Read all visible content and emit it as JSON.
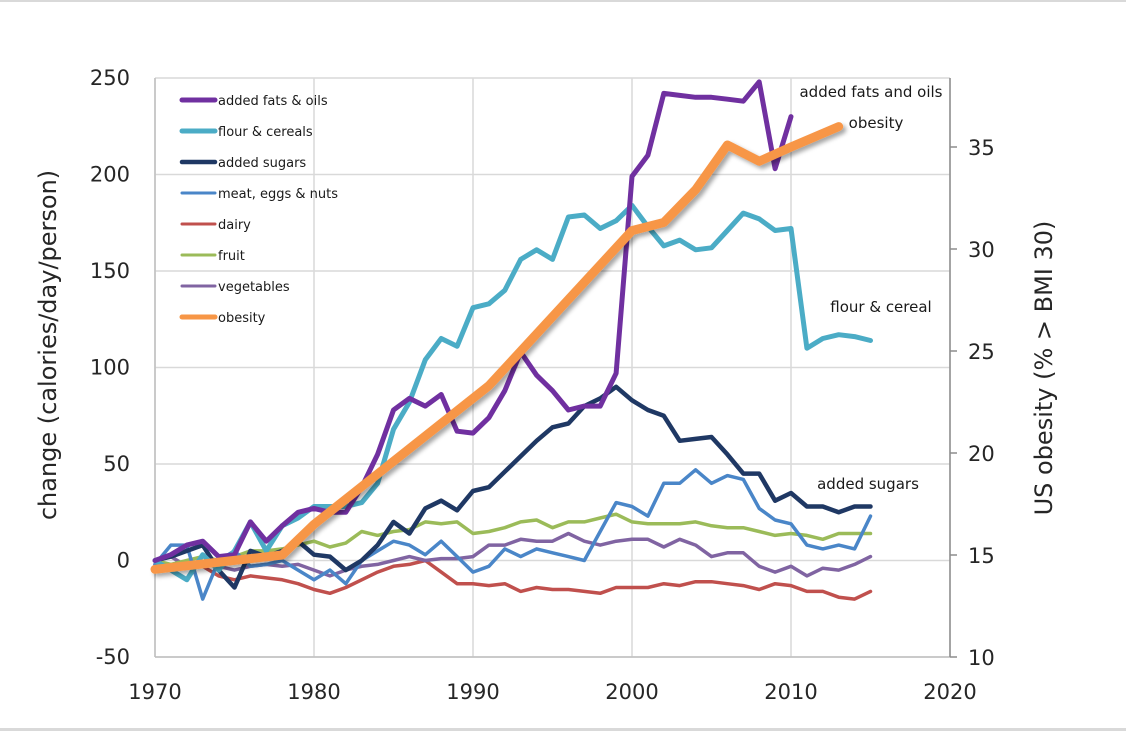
{
  "chart_data": {
    "type": "line",
    "title": "",
    "xlabel": "",
    "ylabel": "change (calories/day/person)",
    "y2label": "US obesity (% > BMI 30)",
    "xlim": [
      1970,
      2020
    ],
    "ylim": [
      -50,
      250
    ],
    "y2lim": [
      10,
      38.1
    ],
    "xticks": [
      "1970",
      "1980",
      "1990",
      "2000",
      "2010",
      "2020"
    ],
    "yticks": [
      "250",
      "200",
      "150",
      "100",
      "50",
      "0",
      "-50"
    ],
    "y2ticks": [
      "35",
      "30",
      "25",
      "20",
      "15",
      "10"
    ],
    "grid": true,
    "legend_position": "top-left",
    "legend": [
      "added fats & oils",
      "flour & cereals",
      "added sugars",
      "meat, eggs & nuts",
      "dairy",
      "fruit",
      "vegetables",
      "obesity"
    ],
    "annotations": [
      {
        "text": "added fats and oils",
        "x": 2013,
        "y": 243
      },
      {
        "text": "obesity",
        "x": 2016,
        "y": 226
      },
      {
        "text": "flour & cereal",
        "x": 2016,
        "y": 131
      },
      {
        "text": "added sugars",
        "x": 2016,
        "y": 39
      }
    ],
    "series": [
      {
        "name": "added fats & oils",
        "axis": "left",
        "color": "#7030a0",
        "x": [
          1970,
          1971,
          1972,
          1973,
          1974,
          1975,
          1976,
          1977,
          1978,
          1979,
          1980,
          1981,
          1982,
          1983,
          1984,
          1985,
          1986,
          1987,
          1988,
          1989,
          1990,
          1991,
          1992,
          1993,
          1994,
          1995,
          1996,
          1997,
          1998,
          1999,
          2000,
          2001,
          2002,
          2003,
          2004,
          2005,
          2006,
          2007,
          2008,
          2009,
          2010
        ],
        "values": [
          0,
          3,
          8,
          10,
          2,
          3,
          20,
          10,
          18,
          25,
          27,
          25,
          25,
          38,
          55,
          78,
          84,
          80,
          86,
          67,
          66,
          74,
          88,
          108,
          96,
          88,
          78,
          80,
          80,
          97,
          199,
          210,
          242,
          241,
          240,
          240,
          239,
          238,
          248,
          203,
          230
        ]
      },
      {
        "name": "flour & cereals",
        "axis": "left",
        "color": "#4bacc6",
        "x": [
          1970,
          1971,
          1972,
          1973,
          1974,
          1975,
          1976,
          1977,
          1978,
          1979,
          1980,
          1981,
          1982,
          1983,
          1984,
          1985,
          1986,
          1987,
          1988,
          1989,
          1990,
          1991,
          1992,
          1993,
          1994,
          1995,
          1996,
          1997,
          1998,
          1999,
          2000,
          2001,
          2002,
          2003,
          2004,
          2005,
          2006,
          2007,
          2008,
          2009,
          2010,
          2011,
          2012,
          2013,
          2014,
          2015
        ],
        "values": [
          0,
          -5,
          -10,
          3,
          -5,
          5,
          20,
          5,
          18,
          22,
          28,
          28,
          28,
          30,
          40,
          68,
          82,
          104,
          115,
          111,
          131,
          133,
          140,
          156,
          161,
          156,
          178,
          179,
          172,
          176,
          184,
          173,
          163,
          166,
          161,
          162,
          171,
          180,
          177,
          171,
          172,
          110,
          115,
          117,
          116,
          114
        ]
      },
      {
        "name": "added sugars",
        "axis": "left",
        "color": "#1f3864",
        "x": [
          1970,
          1971,
          1972,
          1973,
          1974,
          1975,
          1976,
          1977,
          1978,
          1979,
          1980,
          1981,
          1982,
          1983,
          1984,
          1985,
          1986,
          1987,
          1988,
          1989,
          1990,
          1991,
          1992,
          1993,
          1994,
          1995,
          1996,
          1997,
          1998,
          1999,
          2000,
          2001,
          2002,
          2003,
          2004,
          2005,
          2006,
          2007,
          2008,
          2009,
          2010,
          2011,
          2012,
          2013,
          2014,
          2015
        ],
        "values": [
          0,
          2,
          5,
          8,
          -5,
          -14,
          5,
          2,
          5,
          10,
          3,
          2,
          -5,
          0,
          8,
          20,
          14,
          27,
          31,
          26,
          36,
          38,
          46,
          54,
          62,
          69,
          71,
          80,
          84,
          90,
          83,
          78,
          75,
          62,
          63,
          64,
          55,
          45,
          45,
          31,
          35,
          28,
          28,
          25,
          28,
          28
        ]
      },
      {
        "name": "meat, eggs & nuts",
        "axis": "left",
        "color": "#4a86c8",
        "x": [
          1970,
          1971,
          1972,
          1973,
          1974,
          1975,
          1976,
          1977,
          1978,
          1979,
          1980,
          1981,
          1982,
          1983,
          1984,
          1985,
          1986,
          1987,
          1988,
          1989,
          1990,
          1991,
          1992,
          1993,
          1994,
          1995,
          1996,
          1997,
          1998,
          1999,
          2000,
          2001,
          2002,
          2003,
          2004,
          2005,
          2006,
          2007,
          2008,
          2009,
          2010,
          2011,
          2012,
          2013,
          2014,
          2015
        ],
        "values": [
          -2,
          8,
          8,
          -20,
          0,
          5,
          -3,
          -2,
          0,
          -5,
          -10,
          -5,
          -12,
          0,
          5,
          10,
          8,
          3,
          10,
          2,
          -6,
          -3,
          6,
          2,
          6,
          4,
          2,
          0,
          15,
          30,
          28,
          23,
          40,
          40,
          47,
          40,
          44,
          42,
          27,
          21,
          19,
          8,
          6,
          8,
          6,
          23
        ]
      },
      {
        "name": "dairy",
        "axis": "left",
        "color": "#c0504d",
        "x": [
          1970,
          1971,
          1972,
          1973,
          1974,
          1975,
          1976,
          1977,
          1978,
          1979,
          1980,
          1981,
          1982,
          1983,
          1984,
          1985,
          1986,
          1987,
          1988,
          1989,
          1990,
          1991,
          1992,
          1993,
          1994,
          1995,
          1996,
          1997,
          1998,
          1999,
          2000,
          2001,
          2002,
          2003,
          2004,
          2005,
          2006,
          2007,
          2008,
          2009,
          2010,
          2011,
          2012,
          2013,
          2014,
          2015
        ],
        "values": [
          -2,
          -3,
          -2,
          -3,
          -8,
          -10,
          -8,
          -9,
          -10,
          -12,
          -15,
          -17,
          -14,
          -10,
          -6,
          -3,
          -2,
          0,
          -6,
          -12,
          -12,
          -13,
          -12,
          -16,
          -14,
          -15,
          -15,
          -16,
          -17,
          -14,
          -14,
          -14,
          -12,
          -13,
          -11,
          -11,
          -12,
          -13,
          -15,
          -12,
          -13,
          -16,
          -16,
          -19,
          -20,
          -16
        ]
      },
      {
        "name": "fruit",
        "axis": "left",
        "color": "#9bbb59",
        "x": [
          1970,
          1971,
          1972,
          1973,
          1974,
          1975,
          1976,
          1977,
          1978,
          1979,
          1980,
          1981,
          1982,
          1983,
          1984,
          1985,
          1986,
          1987,
          1988,
          1989,
          1990,
          1991,
          1992,
          1993,
          1994,
          1995,
          1996,
          1997,
          1998,
          1999,
          2000,
          2001,
          2002,
          2003,
          2004,
          2005,
          2006,
          2007,
          2008,
          2009,
          2010,
          2011,
          2012,
          2013,
          2014,
          2015
        ],
        "values": [
          0,
          -2,
          0,
          2,
          0,
          2,
          5,
          5,
          6,
          8,
          10,
          7,
          9,
          15,
          13,
          15,
          16,
          20,
          19,
          20,
          14,
          15,
          17,
          20,
          21,
          17,
          20,
          20,
          22,
          24,
          20,
          19,
          19,
          19,
          20,
          18,
          17,
          17,
          15,
          13,
          14,
          13,
          11,
          14,
          14,
          14
        ]
      },
      {
        "name": "vegetables",
        "axis": "left",
        "color": "#8064a2",
        "x": [
          1970,
          1971,
          1972,
          1973,
          1974,
          1975,
          1976,
          1977,
          1978,
          1979,
          1980,
          1981,
          1982,
          1983,
          1984,
          1985,
          1986,
          1987,
          1988,
          1989,
          1990,
          1991,
          1992,
          1993,
          1994,
          1995,
          1996,
          1997,
          1998,
          1999,
          2000,
          2001,
          2002,
          2003,
          2004,
          2005,
          2006,
          2007,
          2008,
          2009,
          2010,
          2011,
          2012,
          2013,
          2014,
          2015
        ],
        "values": [
          0,
          2,
          -3,
          -2,
          -3,
          -5,
          -3,
          -2,
          -3,
          -2,
          -5,
          -8,
          -5,
          -3,
          -2,
          0,
          2,
          0,
          1,
          1,
          2,
          8,
          8,
          11,
          10,
          10,
          14,
          10,
          8,
          10,
          11,
          11,
          7,
          11,
          8,
          2,
          4,
          4,
          -3,
          -6,
          -3,
          -8,
          -4,
          -5,
          -2,
          2
        ]
      },
      {
        "name": "obesity",
        "axis": "right",
        "color": "#f79646",
        "x": [
          1970,
          1978,
          1980,
          1991,
          2000,
          2002,
          2004,
          2006,
          2008,
          2010,
          2013
        ],
        "values": [
          14.3,
          15.0,
          16.5,
          23.3,
          30.9,
          31.3,
          32.9,
          35.1,
          34.3,
          35.0,
          36.0
        ]
      }
    ]
  }
}
